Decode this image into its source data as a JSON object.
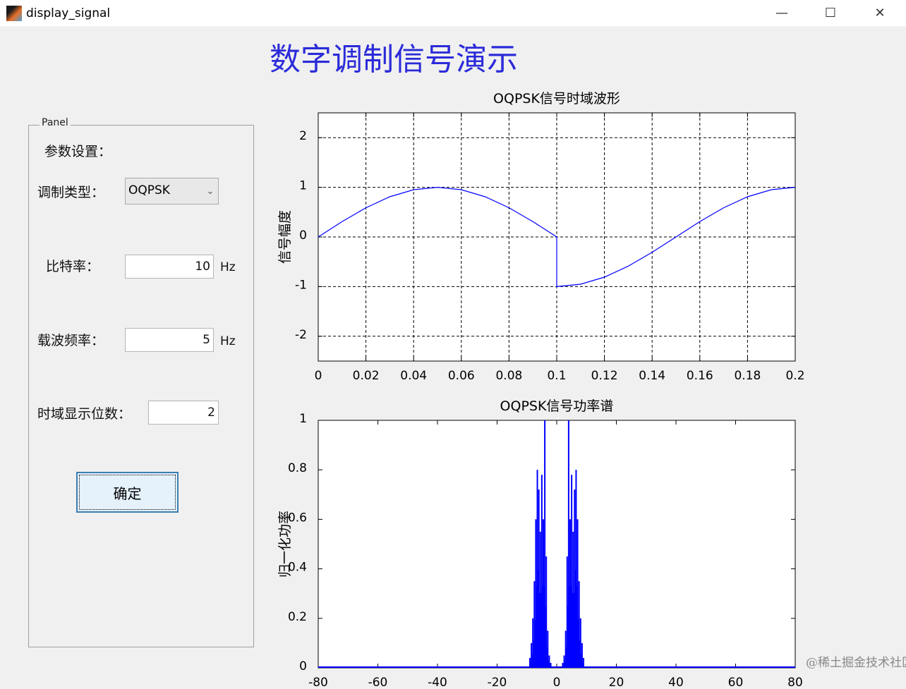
{
  "window": {
    "title": "display_signal",
    "minimize": "—",
    "maximize": "☐",
    "close": "✕"
  },
  "heading": "数字调制信号演示",
  "panel": {
    "legend": "Panel",
    "section_label": "参数设置：",
    "mod_type_label": "调制类型：",
    "mod_type_value": "OQPSK",
    "bit_rate_label": "比特率：",
    "bit_rate_value": "10",
    "bit_rate_unit": "Hz",
    "carrier_label": "载波频率：",
    "carrier_value": "5",
    "carrier_unit": "Hz",
    "bits_label": "时域显示位数：",
    "bits_value": "2",
    "ok_button": "确定"
  },
  "watermark": "@稀土掘金技术社区",
  "chart_data": [
    {
      "type": "line",
      "title": "OQPSK信号时域波形",
      "ylabel": "信号幅度",
      "xlabel": "",
      "xlim": [
        0,
        0.2
      ],
      "ylim": [
        -2.5,
        2.5
      ],
      "grid": true,
      "color": "#0000ff",
      "xticks": [
        "0",
        "0.02",
        "0.04",
        "0.06",
        "0.08",
        "0.1",
        "0.12",
        "0.14",
        "0.16",
        "0.18",
        "0.2"
      ],
      "yticks": [
        "2",
        "1",
        "0",
        "-1",
        "-2"
      ],
      "x": [
        0,
        0.01,
        0.02,
        0.03,
        0.04,
        0.05,
        0.06,
        0.07,
        0.08,
        0.09,
        0.1,
        0.1,
        0.11,
        0.12,
        0.13,
        0.14,
        0.15,
        0.16,
        0.17,
        0.18,
        0.19,
        0.2
      ],
      "y": [
        0,
        0.309,
        0.588,
        0.809,
        0.951,
        1,
        0.951,
        0.809,
        0.588,
        0.309,
        0,
        -1,
        -0.951,
        -0.809,
        -0.588,
        -0.309,
        0,
        0.309,
        0.588,
        0.809,
        0.951,
        1
      ]
    },
    {
      "type": "bar",
      "title": "OQPSK信号功率谱",
      "ylabel": "归一化功率",
      "xlabel": "",
      "xlim": [
        -80,
        80
      ],
      "ylim": [
        0,
        1
      ],
      "grid": false,
      "color": "#0000ff",
      "xticks": [
        "-80",
        "-60",
        "-40",
        "-20",
        "0",
        "20",
        "40",
        "60",
        "80"
      ],
      "yticks": [
        "1",
        "0.8",
        "0.6",
        "0.4",
        "0.2",
        "0"
      ],
      "x": [
        -9,
        -8.5,
        -8,
        -7.5,
        -7,
        -6.5,
        -6,
        -5.5,
        -5,
        -4.5,
        -4,
        -3.5,
        -3,
        -2.5,
        -2,
        2,
        2.5,
        3,
        3.5,
        4,
        4.5,
        5,
        5.5,
        6,
        6.5,
        7,
        7.5,
        8,
        8.5,
        9
      ],
      "y": [
        0.04,
        0.1,
        0.2,
        0.35,
        0.6,
        0.8,
        0.72,
        0.55,
        0.78,
        0.6,
        1.0,
        0.45,
        0.15,
        0.05,
        0.02,
        0.02,
        0.05,
        0.15,
        0.45,
        1.0,
        0.6,
        0.78,
        0.55,
        0.72,
        0.8,
        0.6,
        0.35,
        0.2,
        0.1,
        0.04
      ]
    }
  ]
}
